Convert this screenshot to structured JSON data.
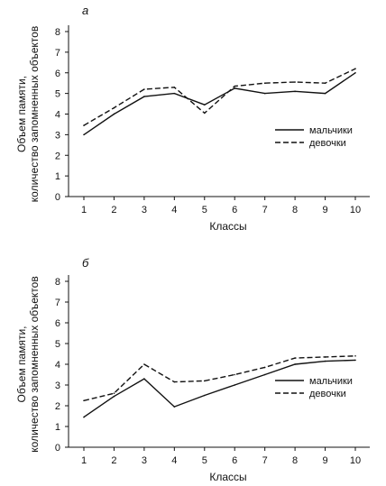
{
  "chart_data": [
    {
      "type": "line",
      "panel_label": "а",
      "xlabel": "Классы",
      "ylabel_line1": "Объем памяти,",
      "ylabel_line2": "количество запомненных объектов",
      "categories": [
        "1",
        "2",
        "3",
        "4",
        "5",
        "6",
        "7",
        "8",
        "9",
        "10"
      ],
      "yticks": [
        "0",
        "1",
        "2",
        "3",
        "4",
        "5",
        "6",
        "7",
        "8"
      ],
      "ylim": [
        0,
        8
      ],
      "legend_position": "lower-right",
      "series": [
        {
          "name": "мальчики",
          "style": "solid",
          "values": [
            3.0,
            4.0,
            4.85,
            5.0,
            4.45,
            5.25,
            5.0,
            5.1,
            5.0,
            6.0
          ]
        },
        {
          "name": "девочки",
          "style": "dashed",
          "values": [
            3.45,
            4.3,
            5.2,
            5.3,
            4.05,
            5.35,
            5.5,
            5.55,
            5.5,
            6.2
          ]
        }
      ]
    },
    {
      "type": "line",
      "panel_label": "б",
      "xlabel": "Классы",
      "ylabel_line1": "Объем памяти,",
      "ylabel_line2": "количество запомненных объектов",
      "categories": [
        "1",
        "2",
        "3",
        "4",
        "5",
        "6",
        "7",
        "8",
        "9",
        "10"
      ],
      "yticks": [
        "0",
        "1",
        "2",
        "3",
        "4",
        "5",
        "6",
        "7",
        "8"
      ],
      "ylim": [
        0,
        8
      ],
      "legend_position": "lower-right",
      "series": [
        {
          "name": "мальчики",
          "style": "solid",
          "values": [
            1.45,
            2.45,
            3.3,
            1.95,
            2.5,
            3.0,
            3.5,
            4.0,
            4.15,
            4.2
          ]
        },
        {
          "name": "девочки",
          "style": "dashed",
          "values": [
            2.25,
            2.6,
            4.0,
            3.15,
            3.2,
            3.5,
            3.85,
            4.3,
            4.35,
            4.4
          ]
        }
      ]
    }
  ]
}
